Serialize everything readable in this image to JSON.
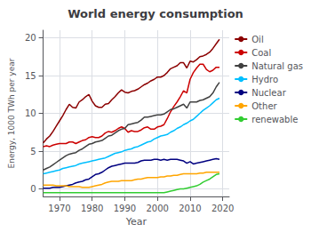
{
  "chart_data": {
    "type": "line",
    "title": "World energy consumption",
    "xlabel": "Year",
    "ylabel": "Energy, 1000 TWh per year",
    "xlim": [
      1965,
      2022
    ],
    "ylim": [
      -1,
      21
    ],
    "xticks": [
      1970,
      1980,
      1990,
      2000,
      2010,
      2020
    ],
    "yticks": [
      0,
      5,
      10,
      15,
      20
    ],
    "grid": true,
    "legend": "upper right",
    "x": [
      1965,
      1966,
      1967,
      1968,
      1969,
      1970,
      1971,
      1972,
      1973,
      1974,
      1975,
      1976,
      1977,
      1978,
      1979,
      1980,
      1981,
      1982,
      1983,
      1984,
      1985,
      1986,
      1987,
      1988,
      1989,
      1990,
      1991,
      1992,
      1993,
      1994,
      1995,
      1996,
      1997,
      1998,
      1999,
      2000,
      2001,
      2002,
      2003,
      2004,
      2005,
      2006,
      2007,
      2008,
      2009,
      2010,
      2011,
      2012,
      2013,
      2014,
      2015,
      2016,
      2017,
      2018,
      2019
    ],
    "series": [
      {
        "name": "Oil",
        "color": "#8B0000",
        "values": [
          6.1,
          6.6,
          7.0,
          7.6,
          8.3,
          9.0,
          9.7,
          10.5,
          11.2,
          10.8,
          10.7,
          11.5,
          11.8,
          12.2,
          12.5,
          11.6,
          11.0,
          10.8,
          10.8,
          11.2,
          11.3,
          11.8,
          12.2,
          12.7,
          13.1,
          12.8,
          12.7,
          12.9,
          13.0,
          13.2,
          13.5,
          13.8,
          14.0,
          14.3,
          14.5,
          14.8,
          14.8,
          15.0,
          15.4,
          15.9,
          16.1,
          16.3,
          16.7,
          16.7,
          16.0,
          16.9,
          16.8,
          17.1,
          17.5,
          17.6,
          17.8,
          18.1,
          18.6,
          19.2,
          19.8
        ]
      },
      {
        "name": "Coal",
        "color": "#CC0000",
        "values": [
          5.6,
          5.7,
          5.6,
          5.8,
          5.9,
          6.0,
          6.0,
          6.0,
          6.2,
          6.2,
          6.0,
          6.2,
          6.4,
          6.5,
          6.8,
          6.9,
          6.8,
          6.8,
          7.0,
          7.4,
          7.6,
          7.5,
          7.7,
          8.0,
          8.2,
          8.0,
          7.5,
          7.7,
          7.6,
          7.6,
          7.8,
          8.1,
          8.2,
          7.9,
          7.9,
          8.2,
          8.3,
          8.5,
          9.3,
          10.2,
          10.9,
          11.5,
          12.2,
          13.0,
          12.7,
          14.5,
          15.4,
          16.0,
          16.5,
          16.5,
          15.8,
          15.5,
          15.7,
          16.1,
          16.1
        ]
      },
      {
        "name": "Natural gas",
        "color": "#404040",
        "values": [
          2.5,
          2.7,
          2.9,
          3.2,
          3.5,
          3.8,
          4.1,
          4.4,
          4.6,
          4.7,
          4.8,
          5.1,
          5.3,
          5.6,
          5.9,
          6.0,
          6.2,
          6.3,
          6.4,
          6.7,
          7.0,
          7.1,
          7.4,
          7.7,
          7.9,
          8.0,
          8.5,
          8.6,
          8.7,
          8.8,
          9.1,
          9.5,
          9.5,
          9.6,
          9.7,
          9.8,
          9.8,
          9.9,
          10.2,
          10.5,
          10.6,
          10.8,
          11.0,
          11.2,
          10.7,
          11.5,
          11.5,
          11.5,
          11.7,
          11.8,
          12.0,
          12.2,
          12.7,
          13.5,
          14.1
        ]
      },
      {
        "name": "Hydro",
        "color": "#00BFFF",
        "values": [
          2.0,
          2.1,
          2.2,
          2.3,
          2.4,
          2.5,
          2.7,
          2.8,
          2.9,
          3.0,
          3.1,
          3.3,
          3.4,
          3.5,
          3.6,
          3.7,
          3.8,
          3.9,
          4.0,
          4.1,
          4.3,
          4.5,
          4.7,
          4.8,
          4.9,
          5.1,
          5.2,
          5.3,
          5.5,
          5.6,
          5.8,
          6.0,
          6.2,
          6.3,
          6.6,
          6.8,
          7.0,
          7.1,
          7.2,
          7.5,
          7.7,
          8.0,
          8.2,
          8.5,
          8.7,
          9.0,
          9.2,
          9.6,
          10.0,
          10.4,
          10.7,
          11.0,
          11.4,
          11.8,
          12.0
        ]
      },
      {
        "name": "Nuclear",
        "color": "#000080",
        "values": [
          0.1,
          0.1,
          0.1,
          0.2,
          0.2,
          0.2,
          0.3,
          0.4,
          0.5,
          0.6,
          0.8,
          0.9,
          1.0,
          1.2,
          1.3,
          1.6,
          1.9,
          2.0,
          2.2,
          2.5,
          2.8,
          3.0,
          3.1,
          3.2,
          3.3,
          3.4,
          3.4,
          3.4,
          3.4,
          3.5,
          3.7,
          3.8,
          3.8,
          3.8,
          3.9,
          3.9,
          3.8,
          3.9,
          3.8,
          3.9,
          3.9,
          3.9,
          3.8,
          3.7,
          3.4,
          3.6,
          3.3,
          3.4,
          3.5,
          3.6,
          3.7,
          3.8,
          3.9,
          4.0,
          3.9
        ]
      },
      {
        "name": "Other",
        "color": "#FFA500",
        "values": [
          0.5,
          0.5,
          0.5,
          0.5,
          0.4,
          0.4,
          0.4,
          0.4,
          0.3,
          0.3,
          0.3,
          0.3,
          0.2,
          0.2,
          0.2,
          0.3,
          0.4,
          0.5,
          0.6,
          0.8,
          0.9,
          1.0,
          1.0,
          1.0,
          1.1,
          1.1,
          1.1,
          1.1,
          1.2,
          1.3,
          1.3,
          1.4,
          1.5,
          1.5,
          1.5,
          1.5,
          1.6,
          1.6,
          1.7,
          1.7,
          1.8,
          1.8,
          1.9,
          2.0,
          2.0,
          2.0,
          2.0,
          2.0,
          2.1,
          2.1,
          2.2,
          2.2,
          2.2,
          2.2,
          2.2
        ]
      },
      {
        "name": "renewable",
        "color": "#32CD32",
        "values": [
          -0.5,
          -0.5,
          -0.5,
          -0.5,
          -0.5,
          -0.5,
          -0.5,
          -0.5,
          -0.5,
          -0.5,
          -0.5,
          -0.5,
          -0.5,
          -0.5,
          -0.5,
          -0.5,
          -0.5,
          -0.5,
          -0.5,
          -0.5,
          -0.5,
          -0.5,
          -0.5,
          -0.5,
          -0.5,
          -0.5,
          -0.5,
          -0.5,
          -0.5,
          -0.5,
          -0.5,
          -0.5,
          -0.5,
          -0.5,
          -0.5,
          -0.5,
          -0.5,
          -0.5,
          -0.4,
          -0.3,
          -0.2,
          -0.1,
          0.0,
          0.0,
          0.1,
          0.2,
          0.3,
          0.4,
          0.6,
          0.9,
          1.1,
          1.3,
          1.6,
          1.9,
          2.0
        ]
      }
    ]
  }
}
